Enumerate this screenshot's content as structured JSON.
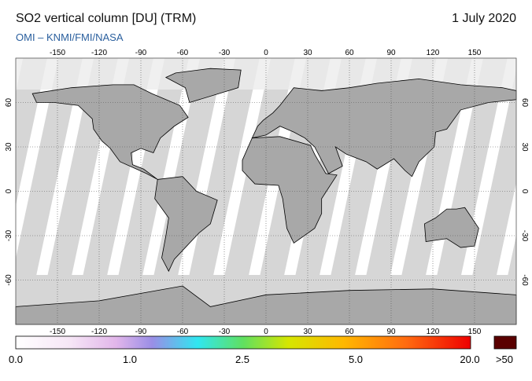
{
  "header": {
    "title": "SO2 vertical column [DU] (TRM)",
    "date": "1 July 2020",
    "credit": "OMI  –  KNMI/FMI/NASA"
  },
  "map": {
    "lonlim": [
      -180,
      180
    ],
    "latlim": [
      -90,
      90
    ],
    "lon_ticks": [
      -150,
      -120,
      -90,
      -60,
      -30,
      0,
      30,
      60,
      90,
      120,
      150
    ],
    "lat_ticks": [
      60,
      30,
      0,
      -30,
      -60
    ]
  },
  "colorbar": {
    "labels": [
      "0.0",
      "1.0",
      "2.5",
      "5.0",
      "20.0",
      ">50"
    ]
  }
}
